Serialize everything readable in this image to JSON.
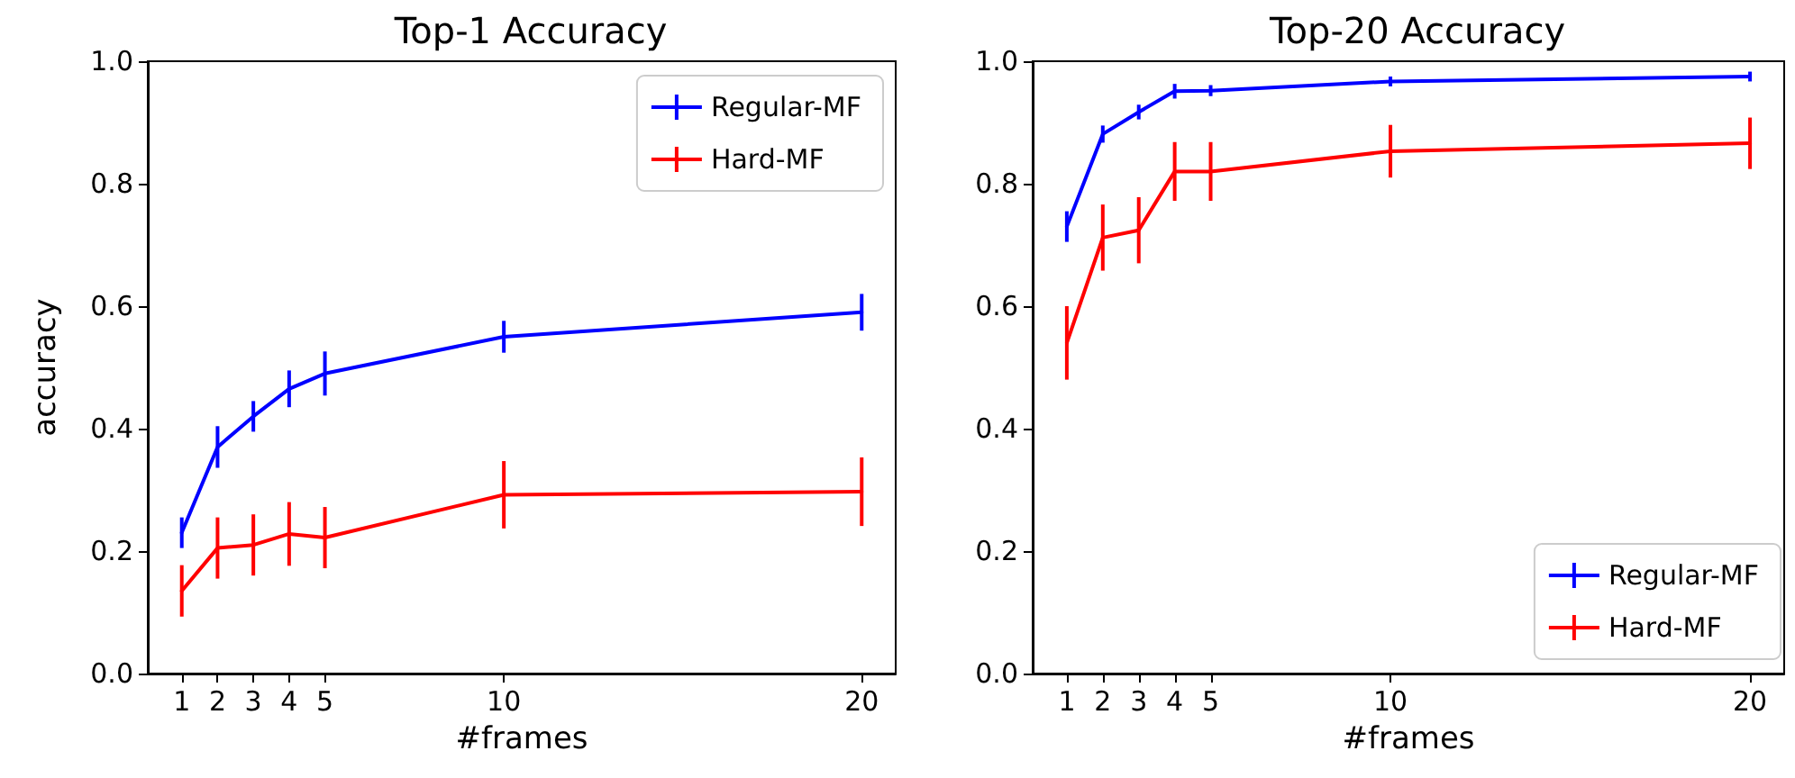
{
  "chart_data": [
    {
      "type": "line",
      "title": "Top-1 Accuracy",
      "xlabel": "#frames",
      "ylabel": "accuracy",
      "x": [
        1,
        2,
        3,
        4,
        5,
        10,
        20
      ],
      "xlim": [
        0.05,
        20.95
      ],
      "xticks": [
        1,
        2,
        3,
        4,
        5,
        10,
        20
      ],
      "ylim": [
        0,
        1
      ],
      "yticks": [
        {
          "value": 0,
          "label": "0.0"
        },
        {
          "value": 0.2,
          "label": "0.2"
        },
        {
          "value": 0.4,
          "label": "0.4"
        },
        {
          "value": 0.6,
          "label": "0.6"
        },
        {
          "value": 0.8,
          "label": "0.8"
        },
        {
          "value": 1,
          "label": "1.0"
        }
      ],
      "grid": false,
      "legend": "top right",
      "marker": "none",
      "line_style": "solid",
      "series": [
        {
          "name": "Regular-MF",
          "color": "#0000ff",
          "values": [
            0.23,
            0.37,
            0.42,
            0.465,
            0.49,
            0.55,
            0.59
          ],
          "errors": [
            0.025,
            0.034,
            0.025,
            0.03,
            0.036,
            0.026,
            0.03
          ]
        },
        {
          "name": "Hard-MF",
          "color": "#ff0000",
          "values": [
            0.135,
            0.205,
            0.21,
            0.228,
            0.222,
            0.292,
            0.297
          ],
          "errors": [
            0.042,
            0.05,
            0.05,
            0.052,
            0.05,
            0.055,
            0.056
          ]
        }
      ]
    },
    {
      "type": "line",
      "title": "Top-20 Accuracy",
      "xlabel": "#frames",
      "x": [
        1,
        2,
        3,
        4,
        5,
        10,
        20
      ],
      "xlim": [
        0.05,
        20.95
      ],
      "xticks": [
        1,
        2,
        3,
        4,
        5,
        10,
        20
      ],
      "ylim": [
        0,
        1
      ],
      "yticks": [
        {
          "value": 0,
          "label": "0.0"
        },
        {
          "value": 0.2,
          "label": "0.2"
        },
        {
          "value": 0.4,
          "label": "0.4"
        },
        {
          "value": 0.6,
          "label": "0.6"
        },
        {
          "value": 0.8,
          "label": "0.8"
        },
        {
          "value": 1,
          "label": "1.0"
        }
      ],
      "grid": false,
      "legend": "bottom right",
      "marker": "none",
      "line_style": "solid",
      "series": [
        {
          "name": "Regular-MF",
          "color": "#0000ff",
          "values": [
            0.73,
            0.881,
            0.917,
            0.951,
            0.952,
            0.967,
            0.975
          ],
          "errors": [
            0.025,
            0.014,
            0.012,
            0.012,
            0.009,
            0.008,
            0.008
          ]
        },
        {
          "name": "Hard-MF",
          "color": "#ff0000",
          "values": [
            0.54,
            0.712,
            0.724,
            0.82,
            0.82,
            0.853,
            0.866
          ],
          "errors": [
            0.06,
            0.054,
            0.054,
            0.048,
            0.048,
            0.043,
            0.042
          ]
        }
      ]
    }
  ]
}
